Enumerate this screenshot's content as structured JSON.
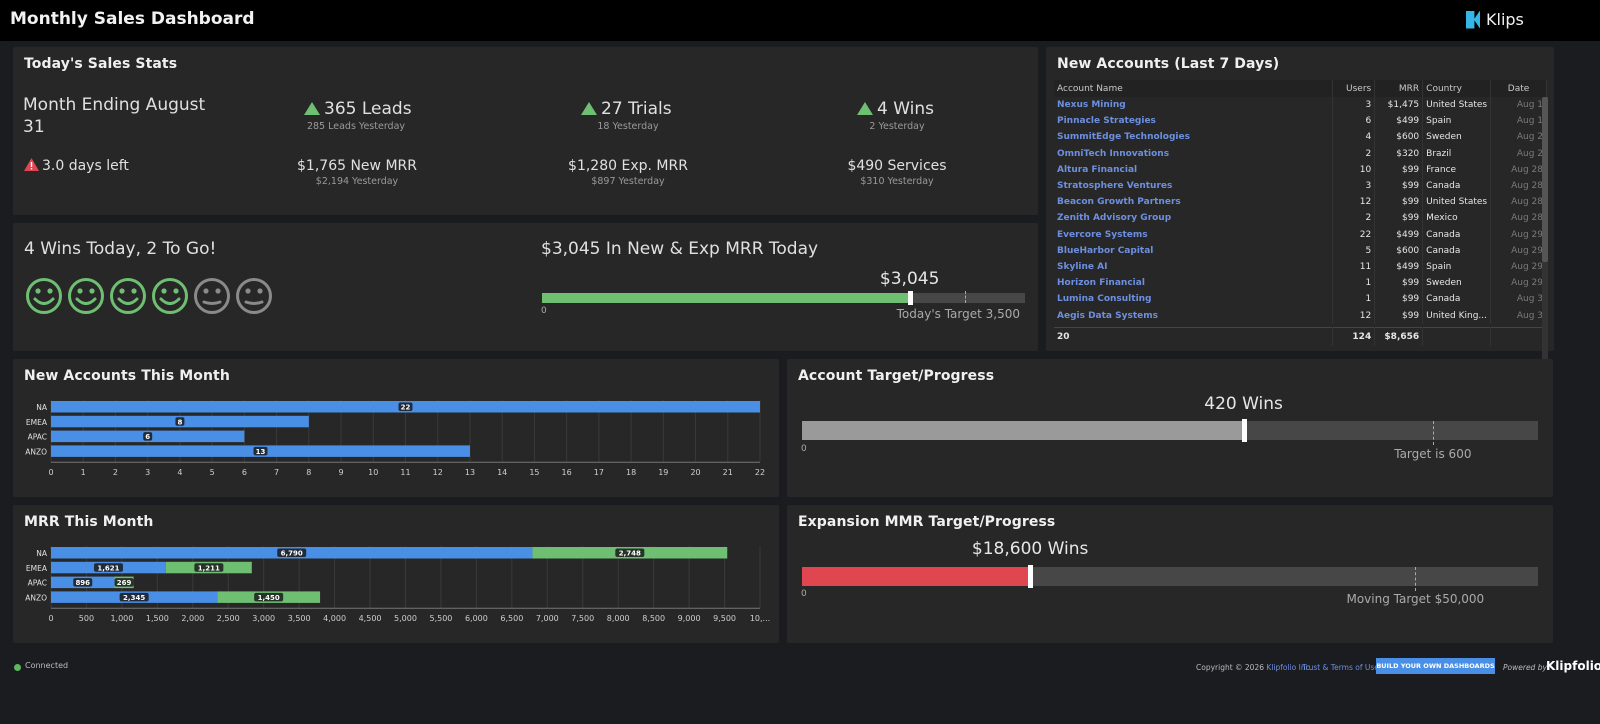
{
  "header": {
    "title": "Monthly Sales Dashboard",
    "brand": "Klips"
  },
  "stats": {
    "title": "Today's Sales Stats",
    "month_line1": "Month Ending August",
    "month_line2": "31",
    "days_left": "3.0 days left",
    "leads": "365 Leads",
    "leads_sub": "285 Leads Yesterday",
    "trials": "27 Trials",
    "trials_sub": "18 Yesterday",
    "wins": "4 Wins",
    "wins_sub": "2 Yesterday",
    "new_mrr": "$1,765 New MRR",
    "new_mrr_sub": "$2,194 Yesterday",
    "exp_mrr": "$1,280 Exp. MRR",
    "exp_mrr_sub": "$897 Yesterday",
    "services": "$490 Services",
    "services_sub": "$310 Yesterday",
    "up_color": "#6fbf73",
    "warn_color": "#e0464f"
  },
  "wins_today": {
    "title": "4 Wins Today, 2 To Go!",
    "happy_count": 4,
    "total_count": 6,
    "happy_color": "#6fbf73",
    "neutral_color": "#8a8a8a",
    "mrr_title": "$3,045 In New & Exp MRR Today",
    "mrr_value_label": "$3,045",
    "mrr_value": 3045,
    "mrr_target": 3500,
    "mrr_max": 4000,
    "mrr_zero": "0",
    "mrr_target_label": "Today's Target 3,500",
    "bar_color": "#6fbf73"
  },
  "accounts": {
    "title": "New Accounts (Last 7 Days)",
    "columns": [
      "Account Name",
      "Users",
      "MRR",
      "Country",
      "Date"
    ],
    "rows": [
      [
        "Nexus Mining",
        "3",
        "$1,475",
        "United States",
        "Aug 1"
      ],
      [
        "Pinnacle Strategies",
        "6",
        "$499",
        "Spain",
        "Aug 1"
      ],
      [
        "SummitEdge Technologies",
        "4",
        "$600",
        "Sweden",
        "Aug 2"
      ],
      [
        "OmniTech Innovations",
        "2",
        "$320",
        "Brazil",
        "Aug 2"
      ],
      [
        "Altura Financial",
        "10",
        "$99",
        "France",
        "Aug 28"
      ],
      [
        "Stratosphere Ventures",
        "3",
        "$99",
        "Canada",
        "Aug 28"
      ],
      [
        "Beacon Growth Partners",
        "12",
        "$99",
        "United States",
        "Aug 28"
      ],
      [
        "Zenith Advisory Group",
        "2",
        "$99",
        "Mexico",
        "Aug 28"
      ],
      [
        "Evercore Systems",
        "22",
        "$499",
        "Canada",
        "Aug 29"
      ],
      [
        "BlueHarbor Capital",
        "5",
        "$600",
        "Canada",
        "Aug 29"
      ],
      [
        "Skyline AI",
        "11",
        "$499",
        "Spain",
        "Aug 29"
      ],
      [
        "Horizon Financial",
        "1",
        "$99",
        "Sweden",
        "Aug 29"
      ],
      [
        "Lumina Consulting",
        "1",
        "$99",
        "Canada",
        "Aug 3"
      ],
      [
        "Aegis Data Systems",
        "12",
        "$99",
        "United King...",
        "Aug 3"
      ]
    ],
    "totals": [
      "20",
      "124",
      "$8,656",
      "",
      ""
    ]
  },
  "new_accounts_chart": {
    "title": "New Accounts This Month",
    "chart_data": {
      "type": "bar",
      "orientation": "horizontal",
      "categories": [
        "NA",
        "EMEA",
        "APAC",
        "ANZO"
      ],
      "values": [
        22,
        8,
        6,
        13
      ],
      "xlim": [
        0,
        22
      ],
      "xticks": [
        0,
        1,
        2,
        3,
        4,
        5,
        6,
        7,
        8,
        9,
        10,
        11,
        12,
        13,
        14,
        15,
        16,
        17,
        18,
        19,
        20,
        21,
        22
      ],
      "color": "#4a8fe6",
      "grid": true
    }
  },
  "mrr_chart": {
    "title": "MRR This Month",
    "chart_data": {
      "type": "bar",
      "orientation": "horizontal",
      "stacked": true,
      "categories": [
        "NA",
        "EMEA",
        "APAC",
        "ANZO"
      ],
      "series": [
        {
          "values": [
            6790,
            1621,
            896,
            2345
          ],
          "color": "#4a8fe6"
        },
        {
          "values": [
            2748,
            1211,
            269,
            1450
          ],
          "color": "#6fbf73"
        }
      ],
      "xlim": [
        0,
        10000
      ],
      "xticks": [
        "0",
        "500",
        "1,000",
        "1,500",
        "2,000",
        "2,500",
        "3,000",
        "3,500",
        "4,000",
        "4,500",
        "5,000",
        "5,500",
        "6,000",
        "6,500",
        "7,000",
        "7,500",
        "8,000",
        "8,500",
        "9,000",
        "9,500",
        "10,..."
      ],
      "grid": true
    }
  },
  "account_target": {
    "title": "Account Target/Progress",
    "value_label": "420 Wins",
    "value": 420,
    "target": 600,
    "max": 700,
    "zero": "0",
    "target_label": "Target is 600",
    "bar_color": "#9a9a9a"
  },
  "expansion_target": {
    "title": "Expansion MMR Target/Progress",
    "value_label": "$18,600 Wins",
    "value": 18600,
    "target": 50000,
    "max": 60000,
    "zero": "0",
    "target_label": "Moving Target $50,000",
    "bar_color": "#e0464f"
  },
  "footer": {
    "connected": "Connected",
    "copyright": "Copyright © 2026",
    "company": "Klipfolio Inc.",
    "terms": "Trust & Terms of Use",
    "build_button": "BUILD YOUR OWN DASHBOARDS",
    "powered_by": "Powered by",
    "logo": "Klipfolio"
  }
}
